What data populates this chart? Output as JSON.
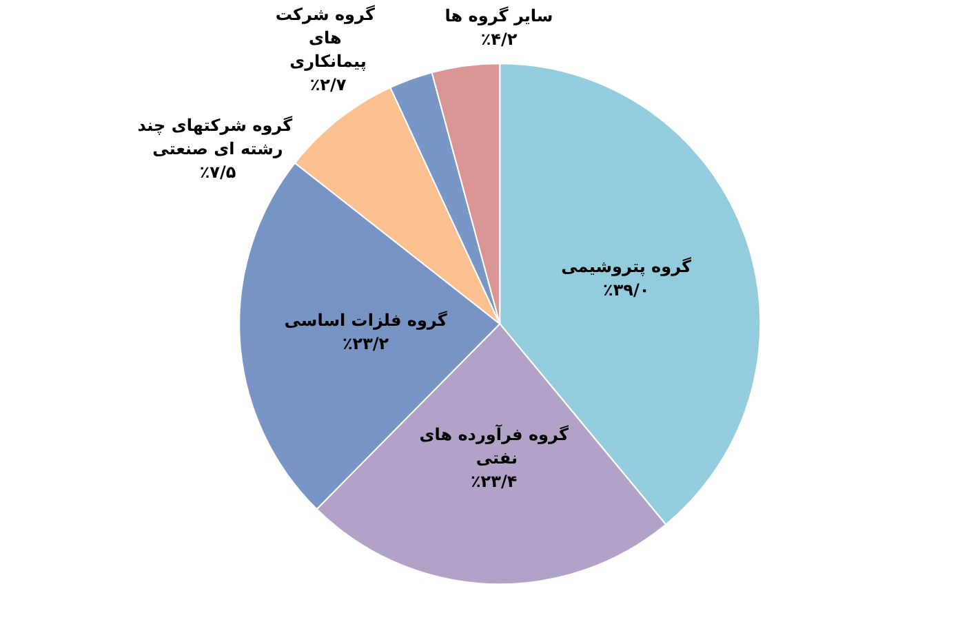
{
  "chart_data": {
    "type": "pie",
    "categories": [
      "گروه پتروشیمی",
      "گروه فرآورده های نفتی",
      "گروه فلزات اساسی",
      "گروه شرکتهای چند رشته ای صنعتی",
      "گروه شرکت های پیمانکاری",
      "سایر گروه ها"
    ],
    "values": [
      39.0,
      23.4,
      23.2,
      7.5,
      2.7,
      4.2
    ],
    "value_labels": [
      "٪۳۹/۰",
      "٪۲۳/۴",
      "٪۲۳/۲",
      "٪۷/۵",
      "٪۲/۷",
      "٪۴/۲"
    ],
    "colors": [
      "#93cddd",
      "#b3a2c7",
      "#7794c4",
      "#fac090",
      "#7896c6",
      "#d99694"
    ],
    "legend": false
  }
}
